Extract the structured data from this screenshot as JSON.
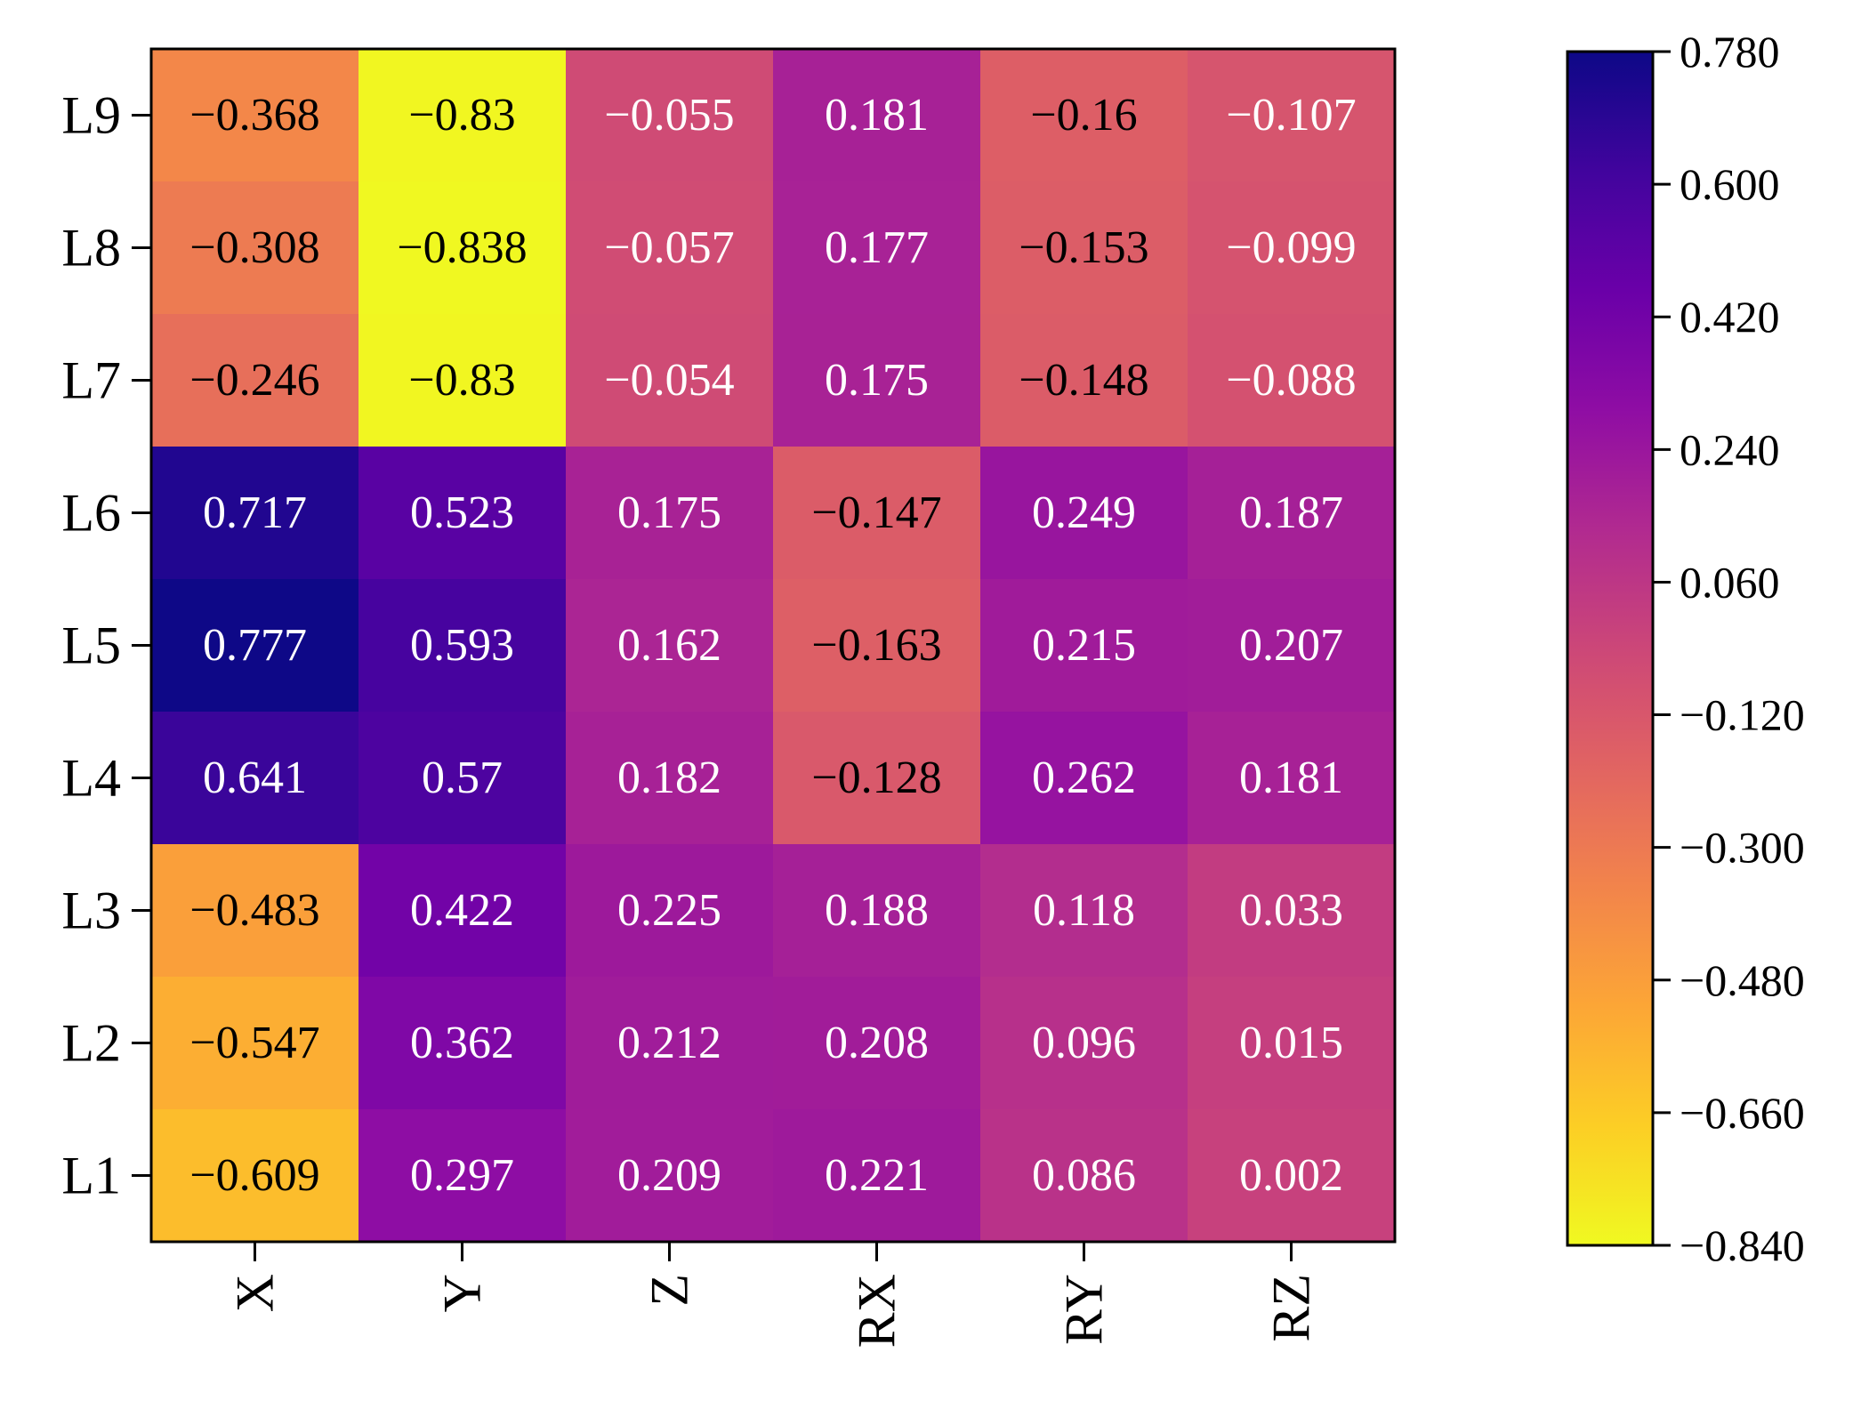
{
  "chart_data": {
    "type": "heatmap",
    "title": "",
    "xlabel": "",
    "ylabel": "",
    "x_categories": [
      "X",
      "Y",
      "Z",
      "RX",
      "RY",
      "RZ"
    ],
    "y_categories": [
      "L9",
      "L8",
      "L7",
      "L6",
      "L5",
      "L4",
      "L3",
      "L2",
      "L1"
    ],
    "values": [
      [
        -0.368,
        -0.83,
        -0.055,
        0.181,
        -0.16,
        -0.107
      ],
      [
        -0.308,
        -0.838,
        -0.057,
        0.177,
        -0.153,
        -0.099
      ],
      [
        -0.246,
        -0.83,
        -0.054,
        0.175,
        -0.148,
        -0.088
      ],
      [
        0.717,
        0.523,
        0.175,
        -0.147,
        0.249,
        0.187
      ],
      [
        0.777,
        0.593,
        0.162,
        -0.163,
        0.215,
        0.207
      ],
      [
        0.641,
        0.57,
        0.182,
        -0.128,
        0.262,
        0.181
      ],
      [
        -0.483,
        0.422,
        0.225,
        0.188,
        0.118,
        0.033
      ],
      [
        -0.547,
        0.362,
        0.212,
        0.208,
        0.096,
        0.015
      ],
      [
        -0.609,
        0.297,
        0.209,
        0.221,
        0.086,
        0.002
      ]
    ],
    "cell_labels": [
      [
        "−0.368",
        "−0.83",
        "−0.055",
        "0.181",
        "−0.16",
        "−0.107"
      ],
      [
        "−0.308",
        "−0.838",
        "−0.057",
        "0.177",
        "−0.153",
        "−0.099"
      ],
      [
        "−0.246",
        "−0.83",
        "−0.054",
        "0.175",
        "−0.148",
        "−0.088"
      ],
      [
        "0.717",
        "0.523",
        "0.175",
        "−0.147",
        "0.249",
        "0.187"
      ],
      [
        "0.777",
        "0.593",
        "0.162",
        "−0.163",
        "0.215",
        "0.207"
      ],
      [
        "0.641",
        "0.57",
        "0.182",
        "−0.128",
        "0.262",
        "0.181"
      ],
      [
        "−0.483",
        "0.422",
        "0.225",
        "0.188",
        "0.118",
        "0.033"
      ],
      [
        "−0.547",
        "0.362",
        "0.212",
        "0.208",
        "0.096",
        "0.015"
      ],
      [
        "−0.609",
        "0.297",
        "0.209",
        "0.221",
        "0.086",
        "0.002"
      ]
    ],
    "colormap": "plasma_r",
    "colorbar": {
      "min": -0.84,
      "max": 0.78,
      "ticks": [
        0.78,
        0.6,
        0.42,
        0.24,
        0.06,
        -0.12,
        -0.3,
        -0.48,
        -0.66,
        -0.84
      ],
      "tick_labels": [
        "0.780",
        "0.600",
        "0.420",
        "0.240",
        "0.060",
        "−0.120",
        "−0.300",
        "−0.480",
        "−0.660",
        "−0.840"
      ],
      "position": "right"
    },
    "grid": false
  }
}
